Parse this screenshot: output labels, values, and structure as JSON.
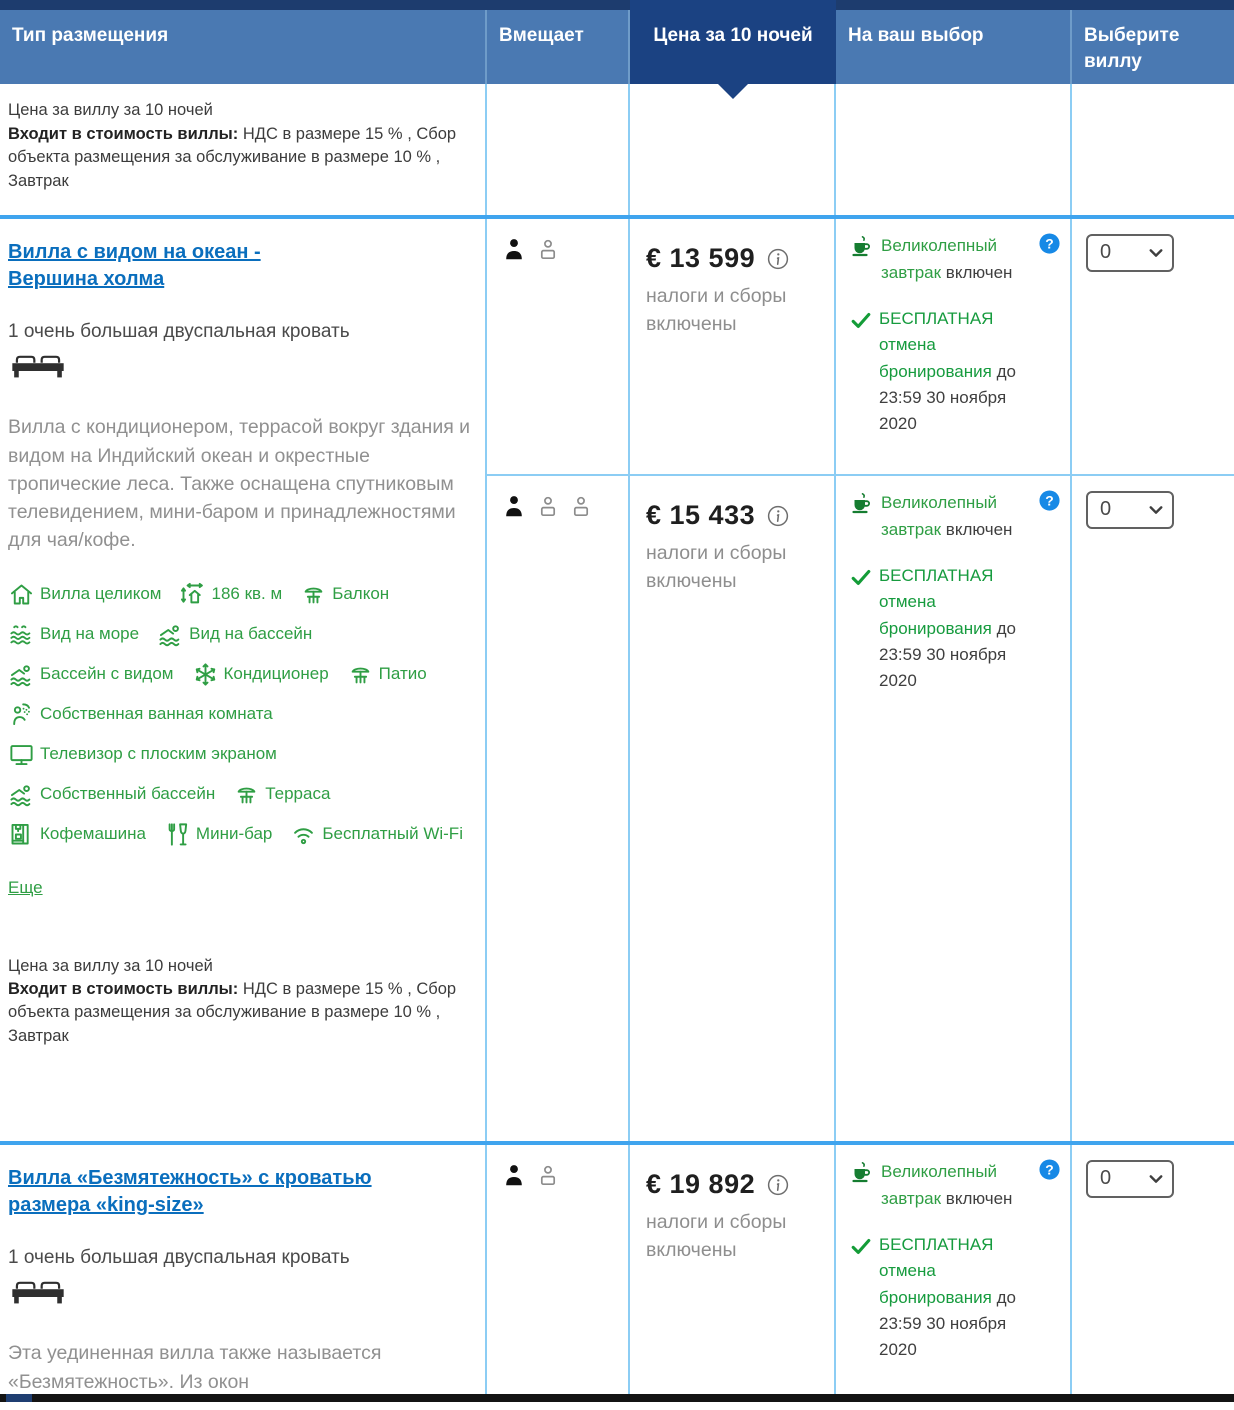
{
  "header": {
    "col_type": "Тип размещения",
    "col_sleeps": "Вмещает",
    "col_price": "Цена за 10 ночей",
    "col_choices": "На ваш выбор",
    "col_select": "Выберите виллу"
  },
  "note": {
    "line1": "Цена за виллу за 10 ночей",
    "bold": "Входит в стоимость виллы:",
    "rest": " НДС в размере 15 % , Сбор объекта размещения за обслуживание в размере 10 % , Завтрак"
  },
  "offer": {
    "breakfast_green": "Великолепный завтрак",
    "breakfast_rest": "включен",
    "cancel_green": "БЕСПЛАТНАЯ отмена бронирования",
    "cancel_rest": "до 23:59 30 ноября 2020"
  },
  "villas": [
    {
      "title": "Вилла с видом на океан - Вершина холма",
      "bed": "1 очень большая двуспальная кровать",
      "description": "Вилла с кондиционером, террасой вокруг здания и видом на Индийский океан и окрестные тропические леса. Также оснащена спутниковым телевидением, мини-баром и принадлежностями для чая/кофе.",
      "more_link": "Еще",
      "amenities": [
        {
          "icon": "house",
          "label": "Вилла целиком"
        },
        {
          "icon": "size",
          "label": "186 кв. м"
        },
        {
          "icon": "terrace",
          "label": "Балкон"
        },
        {
          "icon": "sea-view",
          "label": "Вид на море"
        },
        {
          "icon": "pool-view",
          "label": "Вид на бассейн"
        },
        {
          "icon": "pool-view",
          "label": "Бассейн с видом"
        },
        {
          "icon": "snowflake",
          "label": "Кондиционер"
        },
        {
          "icon": "terrace",
          "label": "Патио"
        },
        {
          "icon": "bathroom",
          "label": "Собственная ванная комната"
        },
        {
          "icon": "tv",
          "label": "Телевизор с плоским экраном"
        },
        {
          "icon": "pool-view",
          "label": "Собственный бассейн"
        },
        {
          "icon": "terrace",
          "label": "Терраса"
        },
        {
          "icon": "coffee-machine",
          "label": "Кофемашина"
        },
        {
          "icon": "minibar",
          "label": "Мини-бар"
        },
        {
          "icon": "wifi",
          "label": "Бесплатный Wi-Fi"
        }
      ],
      "options": [
        {
          "occupancy": {
            "adults": 1,
            "children": 1
          },
          "price": "€ 13 599",
          "taxes": "налоги и сборы включены",
          "select_value": "0"
        },
        {
          "occupancy": {
            "adults": 1,
            "children": 2
          },
          "price": "€ 15 433",
          "taxes": "налоги и сборы включены",
          "select_value": "0"
        }
      ]
    },
    {
      "title": "Вилла «Безмятежность» с кроватью размера «king-size»",
      "bed": "1 очень большая двуспальная кровать",
      "description": "Эта уединенная вилла также называется «Безмятежность». Из окон",
      "options": [
        {
          "occupancy": {
            "adults": 1,
            "children": 1
          },
          "price": "€ 19 892",
          "taxes": "налоги и сборы включены",
          "select_value": "0"
        }
      ]
    }
  ],
  "colors": {
    "header_blue": "#4a79b2",
    "header_dark_blue": "#1b4282",
    "row_separator_blue": "#3fa4ee",
    "cell_border_blue": "#8ccdf4",
    "link_blue": "#0a6ebd",
    "amenity_green": "#2f9e44",
    "cancel_green": "#169b3e",
    "question_badge_blue": "#1789e6"
  }
}
